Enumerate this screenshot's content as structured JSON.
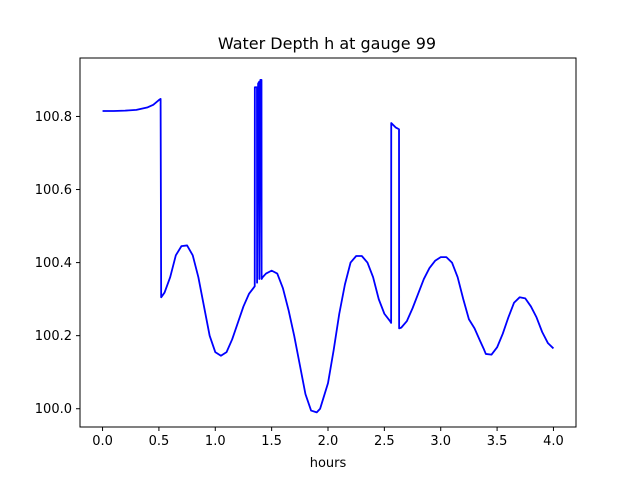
{
  "chart_data": {
    "type": "line",
    "title": "Water Depth h at gauge 99",
    "xlabel": "hours",
    "ylabel": "",
    "xlim": [
      -0.2,
      4.2
    ],
    "ylim": [
      99.95,
      100.96
    ],
    "grid": false,
    "xticks": [
      0.0,
      0.5,
      1.0,
      1.5,
      2.0,
      2.5,
      3.0,
      3.5,
      4.0
    ],
    "xtick_labels": [
      "0.0",
      "0.5",
      "1.0",
      "1.5",
      "2.0",
      "2.5",
      "3.0",
      "3.5",
      "4.0"
    ],
    "yticks": [
      100.0,
      100.2,
      100.4,
      100.6,
      100.8
    ],
    "ytick_labels": [
      "100.0",
      "100.2",
      "100.4",
      "100.6",
      "100.8"
    ],
    "series": [
      {
        "color": "#0000ff",
        "x": [
          0.0,
          0.1,
          0.2,
          0.3,
          0.4,
          0.45,
          0.5,
          0.515,
          0.52,
          0.55,
          0.6,
          0.65,
          0.7,
          0.75,
          0.8,
          0.85,
          0.9,
          0.95,
          1.0,
          1.05,
          1.1,
          1.15,
          1.2,
          1.25,
          1.3,
          1.35,
          1.351,
          1.36,
          1.37,
          1.371,
          1.38,
          1.39,
          1.391,
          1.4,
          1.41,
          1.411,
          1.42,
          1.45,
          1.5,
          1.55,
          1.6,
          1.65,
          1.7,
          1.75,
          1.8,
          1.85,
          1.9,
          1.93,
          1.95,
          2.0,
          2.05,
          2.1,
          2.15,
          2.2,
          2.25,
          2.3,
          2.35,
          2.4,
          2.45,
          2.5,
          2.55,
          2.56,
          2.561,
          2.6,
          2.63,
          2.631,
          2.65,
          2.7,
          2.75,
          2.8,
          2.85,
          2.9,
          2.95,
          3.0,
          3.05,
          3.1,
          3.15,
          3.2,
          3.25,
          3.3,
          3.35,
          3.38,
          3.4,
          3.45,
          3.5,
          3.55,
          3.6,
          3.65,
          3.7,
          3.75,
          3.8,
          3.85,
          3.9,
          3.95,
          4.0
        ],
        "y": [
          100.815,
          100.815,
          100.816,
          100.818,
          100.825,
          100.832,
          100.845,
          100.848,
          100.305,
          100.318,
          100.36,
          100.42,
          100.445,
          100.447,
          100.42,
          100.36,
          100.28,
          100.2,
          100.155,
          100.145,
          100.155,
          100.19,
          100.235,
          100.28,
          100.315,
          100.335,
          100.88,
          100.88,
          100.88,
          100.345,
          100.89,
          100.895,
          100.355,
          100.9,
          100.9,
          100.355,
          100.36,
          100.37,
          100.378,
          100.37,
          100.33,
          100.27,
          100.2,
          100.12,
          100.04,
          99.995,
          99.99,
          100.0,
          100.02,
          100.07,
          100.16,
          100.26,
          100.34,
          100.4,
          100.418,
          100.418,
          100.4,
          100.36,
          100.3,
          100.26,
          100.24,
          100.235,
          100.782,
          100.77,
          100.765,
          100.22,
          100.222,
          100.24,
          100.275,
          100.315,
          100.355,
          100.385,
          100.405,
          100.415,
          100.415,
          100.4,
          100.36,
          100.3,
          100.245,
          100.22,
          100.185,
          100.165,
          100.15,
          100.148,
          100.168,
          100.205,
          100.25,
          100.29,
          100.305,
          100.302,
          100.28,
          100.25,
          100.21,
          100.18,
          100.165
        ]
      }
    ]
  }
}
